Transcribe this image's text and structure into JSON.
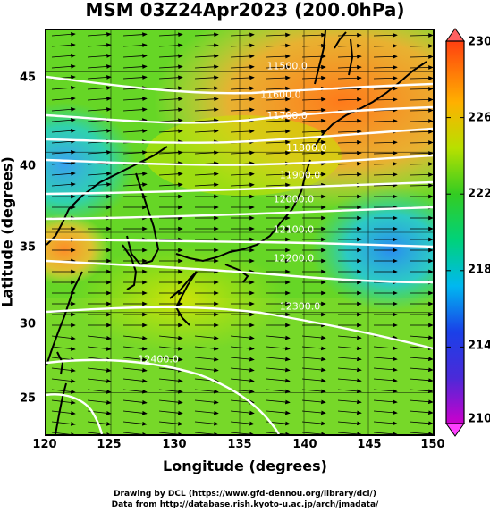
{
  "title": "MSM 03Z24Apr2023 (200.0hPa)",
  "xlabel": "Longitude (degrees)",
  "ylabel": "Latitude  (degrees)",
  "x_ticks": [
    "120",
    "125",
    "130",
    "135",
    "140",
    "145",
    "150"
  ],
  "y_ticks": [
    "45",
    "40",
    "35",
    "30",
    "25"
  ],
  "colorbar": {
    "labels": [
      "230",
      "226",
      "222",
      "218",
      "214",
      "210"
    ],
    "min": 210,
    "max": 230,
    "colors": [
      "#cc00cc",
      "#2a2ae0",
      "#00b4f0",
      "#00d27a",
      "#22cc22",
      "#cce600",
      "#ffaa00",
      "#ff5000"
    ]
  },
  "contour_labels": [
    "11500.0",
    "11600.0",
    "11700.0",
    "11800.0",
    "11900.0",
    "12000.0",
    "12100.0",
    "12200.0",
    "12300.0",
    "12400.0"
  ],
  "credits": {
    "line1": "Drawing by DCL (https://www.gfd-dennou.org/library/dcl/)",
    "line2": "Data from http://database.rish.kyoto-u.ac.jp/arch/jmadata/"
  },
  "chart_data": {
    "type": "heatmap",
    "title": "MSM 03Z24Apr2023 (200.0hPa)",
    "xlabel": "Longitude (degrees)",
    "ylabel": "Latitude  (degrees)",
    "xlim": [
      120,
      150
    ],
    "ylim": [
      22.4,
      47.6
    ],
    "color_range": [
      210,
      230
    ],
    "overlays": [
      "wind vectors (flow from west to east)",
      "white height contours"
    ],
    "contours": [
      {
        "value": 11500.0,
        "label_lon": 138.5,
        "label_lat": 45.4
      },
      {
        "value": 11600.0,
        "label_lon": 138.0,
        "label_lat": 43.6
      },
      {
        "value": 11700.0,
        "label_lon": 138.5,
        "label_lat": 42.3
      },
      {
        "value": 11800.0,
        "label_lon": 140.0,
        "label_lat": 40.3
      },
      {
        "value": 11900.0,
        "label_lon": 139.5,
        "label_lat": 38.6
      },
      {
        "value": 12000.0,
        "label_lon": 139.0,
        "label_lat": 37.1
      },
      {
        "value": 12100.0,
        "label_lon": 139.0,
        "label_lat": 35.2
      },
      {
        "value": 12200.0,
        "label_lon": 139.0,
        "label_lat": 33.4
      },
      {
        "value": 12300.0,
        "label_lon": 139.5,
        "label_lat": 30.4
      },
      {
        "value": 12400.0,
        "label_lon": 128.5,
        "label_lat": 27.1
      }
    ],
    "grid": true
  }
}
